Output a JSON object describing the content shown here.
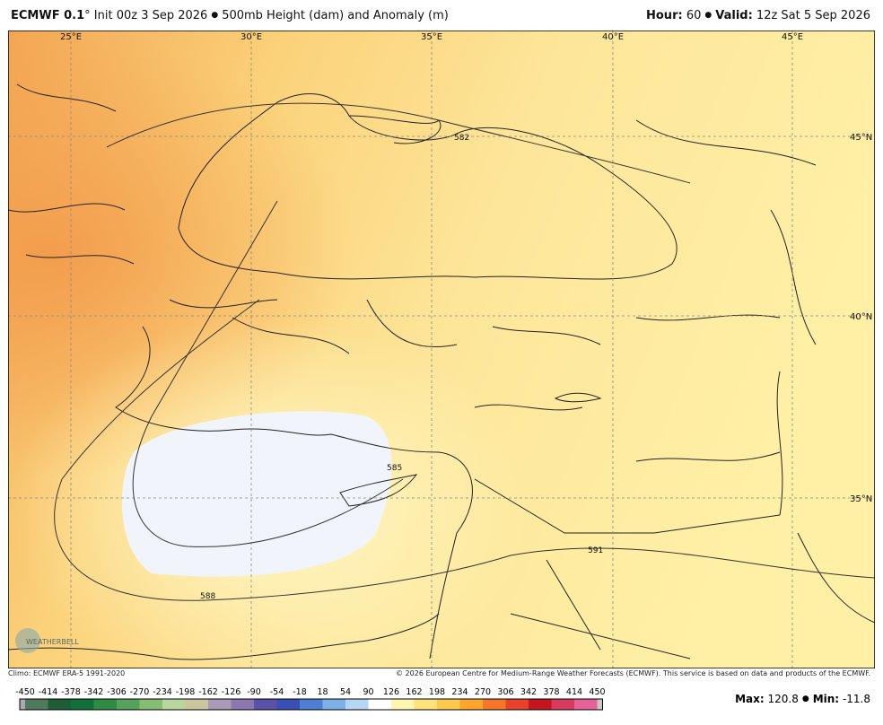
{
  "header": {
    "model": "ECMWF 0.1",
    "degree": "°",
    "init": "Init 00z 3 Sep 2026",
    "product": "500mb Height (dam) and Anomaly (m)",
    "hour_label": "Hour:",
    "hour": "60",
    "valid_label": "Valid:",
    "valid": "12z Sat 5 Sep 2026"
  },
  "map": {
    "lon_labels": [
      "25°E",
      "30°E",
      "35°E",
      "40°E",
      "45°E"
    ],
    "lat_labels": [
      "45°N",
      "40°N",
      "35°N"
    ],
    "contour_labels": [
      "582",
      "585",
      "588",
      "591"
    ],
    "logo": "WEATHERBELL"
  },
  "footer": {
    "climo": "Climo: ECMWF ERA-5 1991-2020",
    "copyright": "© 2026 European Centre for Medium-Range Weather Forecasts (ECMWF). This service is based on data and products of the ECMWF."
  },
  "colorbar": {
    "ticks": [
      -450,
      -414,
      -378,
      -342,
      -306,
      -270,
      -234,
      -198,
      -162,
      -126,
      -90,
      -54,
      -18,
      18,
      54,
      90,
      126,
      162,
      198,
      234,
      270,
      306,
      342,
      378,
      414,
      450
    ]
  },
  "stats": {
    "max_label": "Max:",
    "max": "120.8",
    "min_label": "Min:",
    "min": "-11.8"
  }
}
